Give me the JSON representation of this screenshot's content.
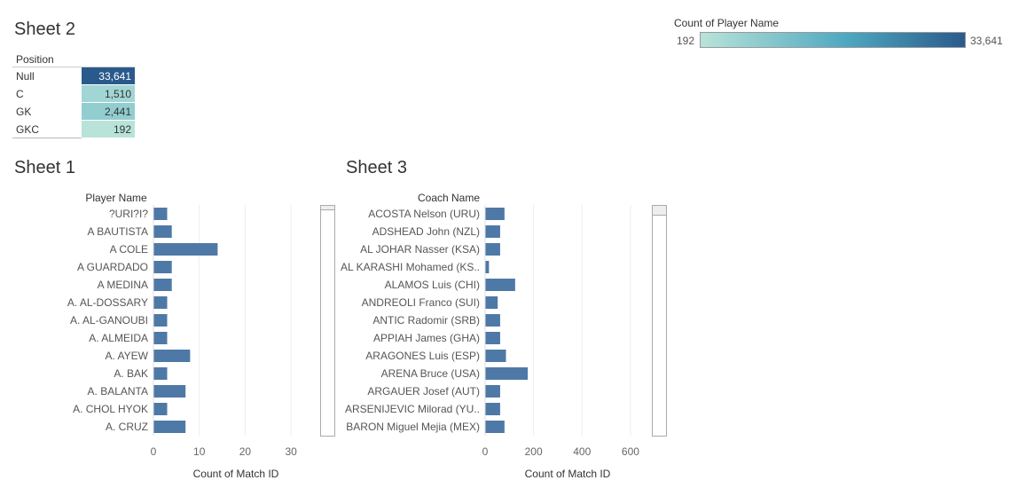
{
  "legend": {
    "title": "Count of Player Name",
    "min_label": "192",
    "max_label": "33,641",
    "color_low": "#b9e3d9",
    "color_high": "#2a5a8c"
  },
  "sheet2": {
    "title": "Sheet 2",
    "column_header": "Position",
    "rows": [
      {
        "label": "Null",
        "value": 33641,
        "display": "33,641"
      },
      {
        "label": "C",
        "value": 1510,
        "display": "1,510"
      },
      {
        "label": "GK",
        "value": 2441,
        "display": "2,441"
      },
      {
        "label": "GKC",
        "value": 192,
        "display": "192"
      }
    ]
  },
  "chart_data": [
    {
      "type": "bar",
      "title": "Sheet 1",
      "category_header": "Player Name",
      "xlabel": "Count of Match ID",
      "categories": [
        "?URI?I?",
        "A BAUTISTA",
        "A COLE",
        "A GUARDADO",
        "A MEDINA",
        "A. AL-DOSSARY",
        "A. AL-GANOUBI",
        "A. ALMEIDA",
        "A. AYEW",
        "A. BAK",
        "A. BALANTA",
        "A. CHOL HYOK",
        "A. CRUZ"
      ],
      "values": [
        3,
        4,
        14,
        4,
        4,
        3,
        3,
        3,
        8,
        3,
        7,
        3,
        7
      ],
      "xlim": [
        0,
        35
      ],
      "xticks": [
        "0",
        "10",
        "20",
        "30"
      ],
      "bar_color": "#4e79a7"
    },
    {
      "type": "bar",
      "title": "Sheet 3",
      "category_header": "Coach Name",
      "xlabel": "Count of Match ID",
      "categories": [
        "ACOSTA Nelson (URU)",
        "ADSHEAD John (NZL)",
        "AL JOHAR Nasser (KSA)",
        "AL KARASHI Mohamed (KS..",
        "ALAMOS Luis (CHI)",
        "ANDREOLI Franco (SUI)",
        "ANTIC Radomir (SRB)",
        "APPIAH James (GHA)",
        "ARAGONES Luis (ESP)",
        "ARENA Bruce (USA)",
        "ARGAUER Josef (AUT)",
        "ARSENIJEVIC Milorad (YU..",
        "BARON Miguel Mejia (MEX)"
      ],
      "values": [
        80,
        62,
        62,
        16,
        124,
        52,
        62,
        62,
        86,
        176,
        62,
        62,
        80
      ],
      "xlim": [
        0,
        690
      ],
      "xticks": [
        "0",
        "200",
        "400",
        "600"
      ],
      "bar_color": "#4e79a7"
    }
  ]
}
